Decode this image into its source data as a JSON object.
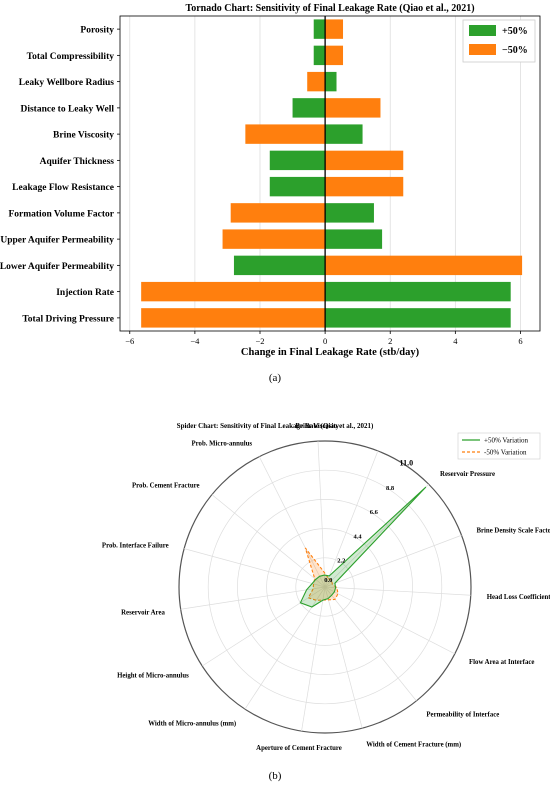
{
  "chart_data": [
    {
      "type": "bar",
      "orientation": "horizontal",
      "title": "Tornado Chart: Sensitivity of Final Leakage Rate (Qiao et al., 2021)",
      "xlabel": "Change in Final Leakage Rate (stb/day)",
      "ylabel": "",
      "xlim": [
        -6.3,
        6.6
      ],
      "xticks": [
        -6,
        -4,
        -2,
        0,
        2,
        4,
        6
      ],
      "xtick_labels": [
        "−6",
        "−4",
        "−2",
        "0",
        "2",
        "4",
        "6"
      ],
      "grid": true,
      "legend_position": "top-right",
      "categories": [
        "Porosity",
        "Total Compressibility",
        "Leaky Wellbore Radius",
        "Distance to Leaky Well",
        "Brine Viscosity",
        "Aquifer Thickness",
        "Leakage Flow Resistance",
        "Formation Volume Factor",
        "Upper Aquifer Permeability",
        "Lower Aquifer Permeability",
        "Injection Rate",
        "Total Driving Pressure"
      ],
      "series": [
        {
          "name": "+50%",
          "color": "#2ca02c",
          "values": [
            -0.35,
            -0.35,
            0.35,
            -1.0,
            1.15,
            -1.7,
            -1.7,
            1.5,
            1.75,
            -2.8,
            5.7,
            5.7
          ]
        },
        {
          "name": "−50%",
          "color": "#ff7f0e",
          "values": [
            0.55,
            0.55,
            -0.55,
            1.7,
            -2.45,
            2.4,
            2.4,
            -2.9,
            -3.15,
            6.05,
            -5.65,
            -5.65
          ]
        }
      ],
      "caption": "(a)"
    },
    {
      "type": "radar",
      "title": "Spider Chart: Sensitivity of Final Leakage Rate (Qiao et al., 2021)",
      "axes": [
        "Leakage Permeability",
        "Reservoir Pressure",
        "Brine Density Scale Factor",
        "Head Loss Coefficient",
        "Flow Area at Interface",
        "Permeability of Interface",
        "Width of Cement Fracture (mm)",
        "Aperture of Cement Fracture",
        "Width of Micro-annulus (mm)",
        "Height of Micro-annulus",
        "Reservoir Area",
        "Prob. Interface Failure",
        "Prob. Cement Fracture",
        "Prob. Micro-annulus",
        "Brine Viscosity"
      ],
      "radial_ticks": [
        0.0,
        2.2,
        4.4,
        6.6,
        8.8,
        11.0
      ],
      "rmax": 11.0,
      "grid": true,
      "legend_position": "top-right",
      "series": [
        {
          "name": "+50% Variation",
          "color": "#2ca02c",
          "style": "solid",
          "values": [
            0.9,
            10.7,
            0.8,
            0.8,
            0.8,
            0.8,
            0.9,
            1.0,
            1.8,
            2.2,
            1.4,
            1.0,
            0.9,
            0.9,
            0.9
          ]
        },
        {
          "name": "-50% Variation",
          "color": "#ff7f0e",
          "style": "dashed",
          "values": [
            0.7,
            0.7,
            0.6,
            0.9,
            1.1,
            1.2,
            1.0,
            1.0,
            1.2,
            1.5,
            0.9,
            0.9,
            1.0,
            3.3,
            1.1
          ]
        }
      ],
      "caption": "(b)"
    }
  ]
}
